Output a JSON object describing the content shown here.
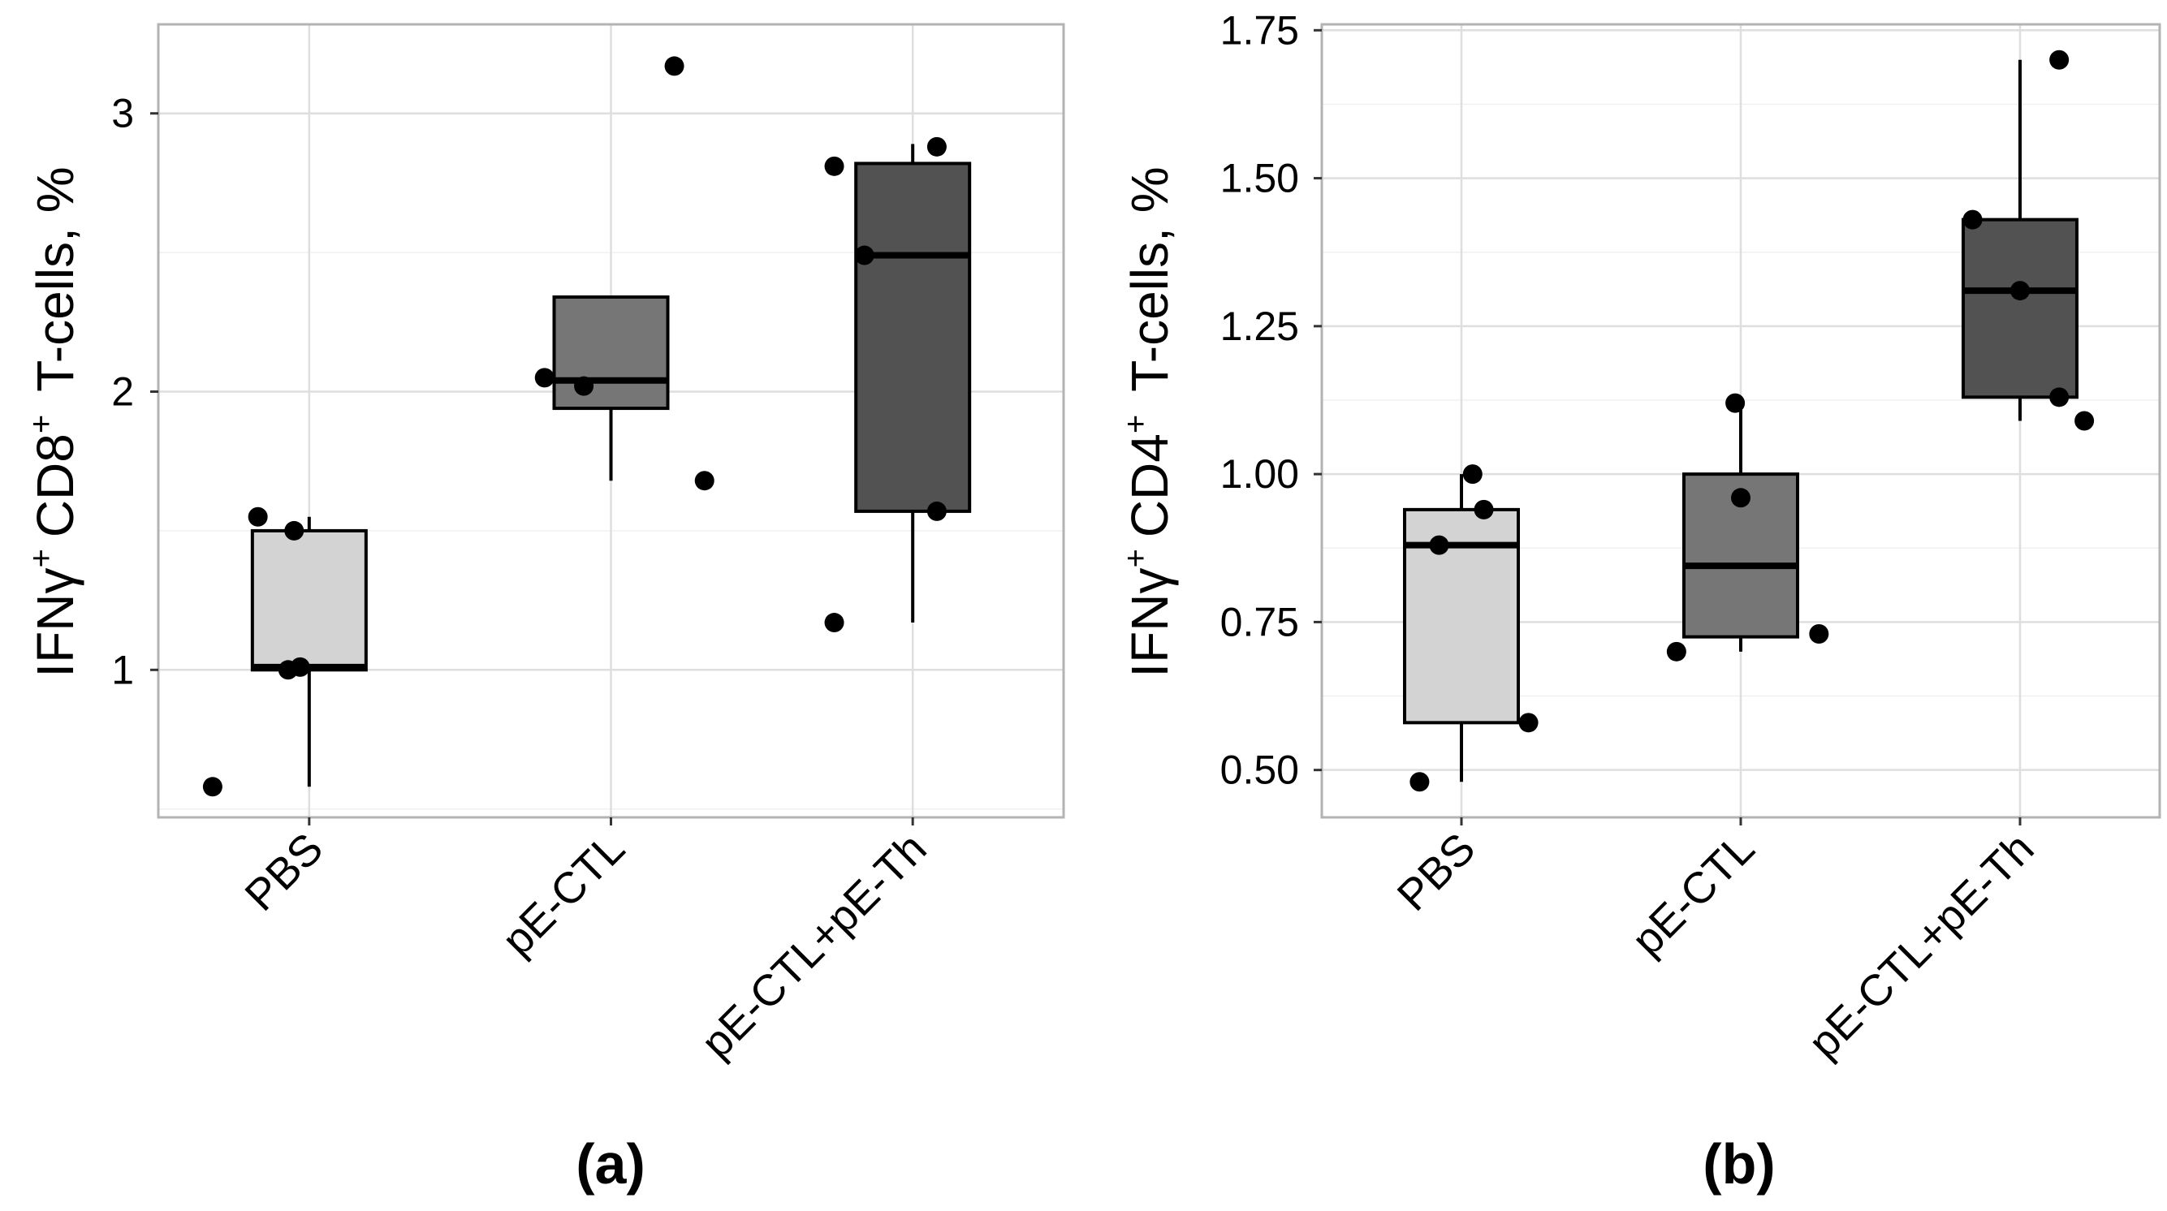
{
  "figure": {
    "panels": [
      {
        "id": "a",
        "label": "(a)"
      },
      {
        "id": "b",
        "label": "(b)"
      }
    ]
  },
  "chart_data": [
    {
      "type": "box",
      "panel_label": "(a)",
      "ylabel": {
        "main": "IFNγ",
        "marker": "CD8",
        "sup": "+",
        "suffix": "T-cells, %"
      },
      "categories": [
        "PBS",
        "pE-CTL",
        "pE-CTL+pE-Th"
      ],
      "yticks": [
        "1",
        "2",
        "3"
      ],
      "ytick_values": [
        1,
        2,
        3
      ],
      "ylim": [
        0.47,
        3.32
      ],
      "grid": true,
      "boxes": [
        {
          "category": "PBS",
          "fill": "#d3d3d3",
          "q1": 1.0,
          "median": 1.01,
          "q3": 1.5,
          "whisker_low": 0.58,
          "whisker_high": 1.55
        },
        {
          "category": "pE-CTL",
          "fill": "#767676",
          "q1": 1.94,
          "median": 2.04,
          "q3": 2.34,
          "whisker_low": 1.68,
          "whisker_high": 2.34
        },
        {
          "category": "pE-CTL+pE-Th",
          "fill": "#525252",
          "q1": 1.57,
          "median": 2.49,
          "q3": 2.82,
          "whisker_low": 1.17,
          "whisker_high": 2.89
        }
      ],
      "points": [
        {
          "category": "PBS",
          "jitter": -0.32,
          "y": 0.58
        },
        {
          "category": "PBS",
          "jitter": -0.17,
          "y": 1.55
        },
        {
          "category": "PBS",
          "jitter": -0.05,
          "y": 1.5
        },
        {
          "category": "PBS",
          "jitter": -0.07,
          "y": 1.0
        },
        {
          "category": "PBS",
          "jitter": -0.03,
          "y": 1.01
        },
        {
          "category": "pE-CTL",
          "jitter": -0.22,
          "y": 2.05
        },
        {
          "category": "pE-CTL",
          "jitter": -0.09,
          "y": 2.02
        },
        {
          "category": "pE-CTL",
          "jitter": 0.21,
          "y": 3.17
        },
        {
          "category": "pE-CTL",
          "jitter": 0.31,
          "y": 1.68
        },
        {
          "category": "pE-CTL+pE-Th",
          "jitter": -0.26,
          "y": 2.81
        },
        {
          "category": "pE-CTL+pE-Th",
          "jitter": -0.16,
          "y": 2.49
        },
        {
          "category": "pE-CTL+pE-Th",
          "jitter": -0.26,
          "y": 1.17
        },
        {
          "category": "pE-CTL+pE-Th",
          "jitter": 0.08,
          "y": 2.88
        },
        {
          "category": "pE-CTL+pE-Th",
          "jitter": 0.08,
          "y": 1.57
        }
      ]
    },
    {
      "type": "box",
      "panel_label": "(b)",
      "ylabel": {
        "main": "IFNγ",
        "marker": "CD4",
        "sup": "+",
        "suffix": "T-cells, %"
      },
      "categories": [
        "PBS",
        "pE-CTL",
        "pE-CTL+pE-Th"
      ],
      "yticks": [
        "0.50",
        "0.75",
        "1.00",
        "1.25",
        "1.50",
        "1.75"
      ],
      "ytick_values": [
        0.5,
        0.75,
        1.0,
        1.25,
        1.5,
        1.75
      ],
      "ylim": [
        0.42,
        1.76
      ],
      "grid": true,
      "boxes": [
        {
          "category": "PBS",
          "fill": "#d3d3d3",
          "q1": 0.58,
          "median": 0.88,
          "q3": 0.94,
          "whisker_low": 0.48,
          "whisker_high": 1.0
        },
        {
          "category": "pE-CTL",
          "fill": "#767676",
          "q1": 0.725,
          "median": 0.845,
          "q3": 1.0,
          "whisker_low": 0.7,
          "whisker_high": 1.12
        },
        {
          "category": "pE-CTL+pE-Th",
          "fill": "#525252",
          "q1": 1.13,
          "median": 1.31,
          "q3": 1.43,
          "whisker_low": 1.09,
          "whisker_high": 1.7
        }
      ],
      "points": [
        {
          "category": "PBS",
          "jitter": -0.15,
          "y": 0.48
        },
        {
          "category": "PBS",
          "jitter": -0.08,
          "y": 0.88
        },
        {
          "category": "PBS",
          "jitter": 0.04,
          "y": 1.0
        },
        {
          "category": "PBS",
          "jitter": 0.08,
          "y": 0.94
        },
        {
          "category": "PBS",
          "jitter": 0.24,
          "y": 0.58
        },
        {
          "category": "pE-CTL",
          "jitter": -0.23,
          "y": 0.7
        },
        {
          "category": "pE-CTL",
          "jitter": -0.02,
          "y": 1.12
        },
        {
          "category": "pE-CTL",
          "jitter": 0.0,
          "y": 0.96
        },
        {
          "category": "pE-CTL",
          "jitter": 0.28,
          "y": 0.73
        },
        {
          "category": "pE-CTL+pE-Th",
          "jitter": -0.17,
          "y": 1.43
        },
        {
          "category": "pE-CTL+pE-Th",
          "jitter": 0.0,
          "y": 1.31
        },
        {
          "category": "pE-CTL+pE-Th",
          "jitter": 0.14,
          "y": 1.7
        },
        {
          "category": "pE-CTL+pE-Th",
          "jitter": 0.14,
          "y": 1.13
        },
        {
          "category": "pE-CTL+pE-Th",
          "jitter": 0.23,
          "y": 1.09
        }
      ]
    }
  ]
}
